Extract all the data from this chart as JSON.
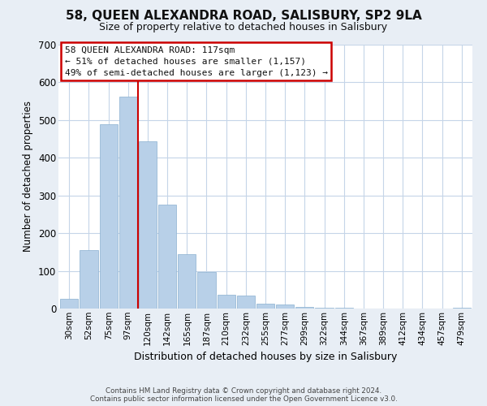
{
  "title": "58, QUEEN ALEXANDRA ROAD, SALISBURY, SP2 9LA",
  "subtitle": "Size of property relative to detached houses in Salisbury",
  "xlabel": "Distribution of detached houses by size in Salisbury",
  "ylabel": "Number of detached properties",
  "categories": [
    "30sqm",
    "52sqm",
    "75sqm",
    "97sqm",
    "120sqm",
    "142sqm",
    "165sqm",
    "187sqm",
    "210sqm",
    "232sqm",
    "255sqm",
    "277sqm",
    "299sqm",
    "322sqm",
    "344sqm",
    "367sqm",
    "389sqm",
    "412sqm",
    "434sqm",
    "457sqm",
    "479sqm"
  ],
  "values": [
    25,
    155,
    490,
    563,
    443,
    275,
    145,
    97,
    37,
    35,
    14,
    10,
    5,
    3,
    2,
    1,
    0,
    0,
    0,
    0,
    2
  ],
  "bar_color": "#b8d0e8",
  "vline_color": "#cc0000",
  "vline_x_index": 3,
  "annotation_lines": [
    "58 QUEEN ALEXANDRA ROAD: 117sqm",
    "← 51% of detached houses are smaller (1,157)",
    "49% of semi-detached houses are larger (1,123) →"
  ],
  "annotation_box_facecolor": "#ffffff",
  "annotation_box_edgecolor": "#cc0000",
  "ylim": [
    0,
    700
  ],
  "yticks": [
    0,
    100,
    200,
    300,
    400,
    500,
    600,
    700
  ],
  "footer_line1": "Contains HM Land Registry data © Crown copyright and database right 2024.",
  "footer_line2": "Contains public sector information licensed under the Open Government Licence v3.0.",
  "fig_facecolor": "#e8eef5",
  "plot_bg_color": "#ffffff",
  "grid_color": "#c5d5e8",
  "title_fontsize": 11,
  "subtitle_fontsize": 9,
  "ylabel_fontsize": 8.5,
  "xlabel_fontsize": 9
}
